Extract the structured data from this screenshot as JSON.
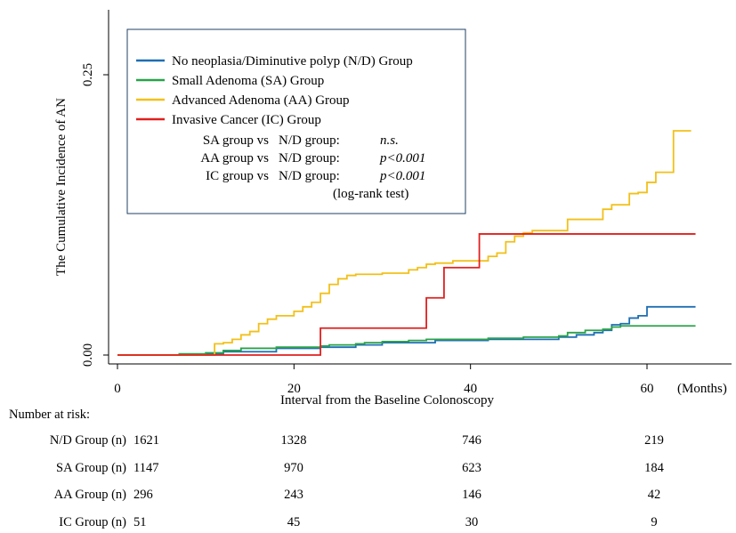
{
  "chart_data": {
    "type": "line",
    "step": true,
    "ylabel": "The Cumulative Incidence of AN",
    "xlabel": "Interval from the Baseline Colonoscopy",
    "x_unit_label": "(Months)",
    "xlim": [
      -2,
      67
    ],
    "ylim": [
      -0.01,
      0.31
    ],
    "xticks": [
      0,
      20,
      40,
      60
    ],
    "xtick_labels": [
      "0",
      "20",
      "40",
      "60"
    ],
    "yticks": [
      0.0,
      0.25
    ],
    "ytick_labels": [
      "0.00",
      "0.25"
    ],
    "grid": false,
    "legend_position": "top-left",
    "series": [
      {
        "name": "No neoplasia/Diminutive polyp (N/D) Group",
        "color": "#1f6fb4",
        "x": [
          0,
          7,
          12,
          18,
          23,
          27,
          30,
          36,
          42,
          50,
          52,
          54,
          55,
          56,
          57,
          58,
          59,
          60,
          65.5
        ],
        "y": [
          0,
          0.001,
          0.003,
          0.006,
          0.007,
          0.009,
          0.011,
          0.013,
          0.014,
          0.016,
          0.018,
          0.02,
          0.022,
          0.027,
          0.028,
          0.033,
          0.035,
          0.043,
          0.043
        ]
      },
      {
        "name": "Small Adenoma (SA) Group",
        "color": "#2aa24a",
        "x": [
          0,
          7,
          10,
          12,
          14,
          18,
          23,
          24,
          27,
          28,
          30,
          33,
          35,
          42,
          46,
          50,
          51,
          53,
          55,
          56,
          57,
          65.5
        ],
        "y": [
          0,
          0.001,
          0.002,
          0.004,
          0.006,
          0.007,
          0.008,
          0.009,
          0.01,
          0.011,
          0.012,
          0.013,
          0.014,
          0.015,
          0.016,
          0.017,
          0.02,
          0.022,
          0.023,
          0.025,
          0.026,
          0.026
        ]
      },
      {
        "name": "Advanced Adenoma (AA) Group",
        "color": "#f2c019",
        "x": [
          0,
          11,
          12,
          13,
          14,
          15,
          16,
          17,
          18,
          20,
          21,
          22,
          23,
          24,
          25,
          26,
          27,
          30,
          33,
          34,
          35,
          36,
          38,
          42,
          43,
          44,
          45,
          46,
          47,
          51,
          55,
          56,
          58,
          59,
          60,
          61,
          63,
          65
        ],
        "y": [
          0,
          0.01,
          0.011,
          0.014,
          0.018,
          0.021,
          0.028,
          0.032,
          0.035,
          0.039,
          0.043,
          0.047,
          0.055,
          0.063,
          0.068,
          0.071,
          0.072,
          0.073,
          0.076,
          0.078,
          0.081,
          0.082,
          0.084,
          0.088,
          0.091,
          0.101,
          0.106,
          0.109,
          0.111,
          0.121,
          0.13,
          0.134,
          0.144,
          0.145,
          0.154,
          0.163,
          0.2,
          0.2
        ]
      },
      {
        "name": "Invasive Cancer (IC) Group",
        "color": "#e0201f",
        "x": [
          0,
          23,
          35,
          37,
          41,
          65.5
        ],
        "y": [
          0,
          0.024,
          0.051,
          0.078,
          0.108,
          0.108
        ]
      }
    ],
    "annotations": [
      {
        "prefix": "SA group vs",
        "group": "N/D group:",
        "result": "n.s."
      },
      {
        "prefix": "AA group vs",
        "group": "N/D group:",
        "result": "p<0.001"
      },
      {
        "prefix": "IC group vs",
        "group": "N/D group:",
        "result": "p<0.001"
      }
    ],
    "test_note": "(log-rank test)"
  },
  "risk_table": {
    "header": "Number at risk:",
    "rows": [
      {
        "label": "N/D Group (n)",
        "values": [
          "1621",
          "1328",
          "746",
          "219"
        ]
      },
      {
        "label": "SA Group (n)",
        "values": [
          "1147",
          "970",
          "623",
          "184"
        ]
      },
      {
        "label": "AA Group (n)",
        "values": [
          "296",
          "243",
          "146",
          "42"
        ]
      },
      {
        "label": "IC Group (n)",
        "values": [
          "51",
          "45",
          "30",
          "9"
        ]
      }
    ]
  }
}
